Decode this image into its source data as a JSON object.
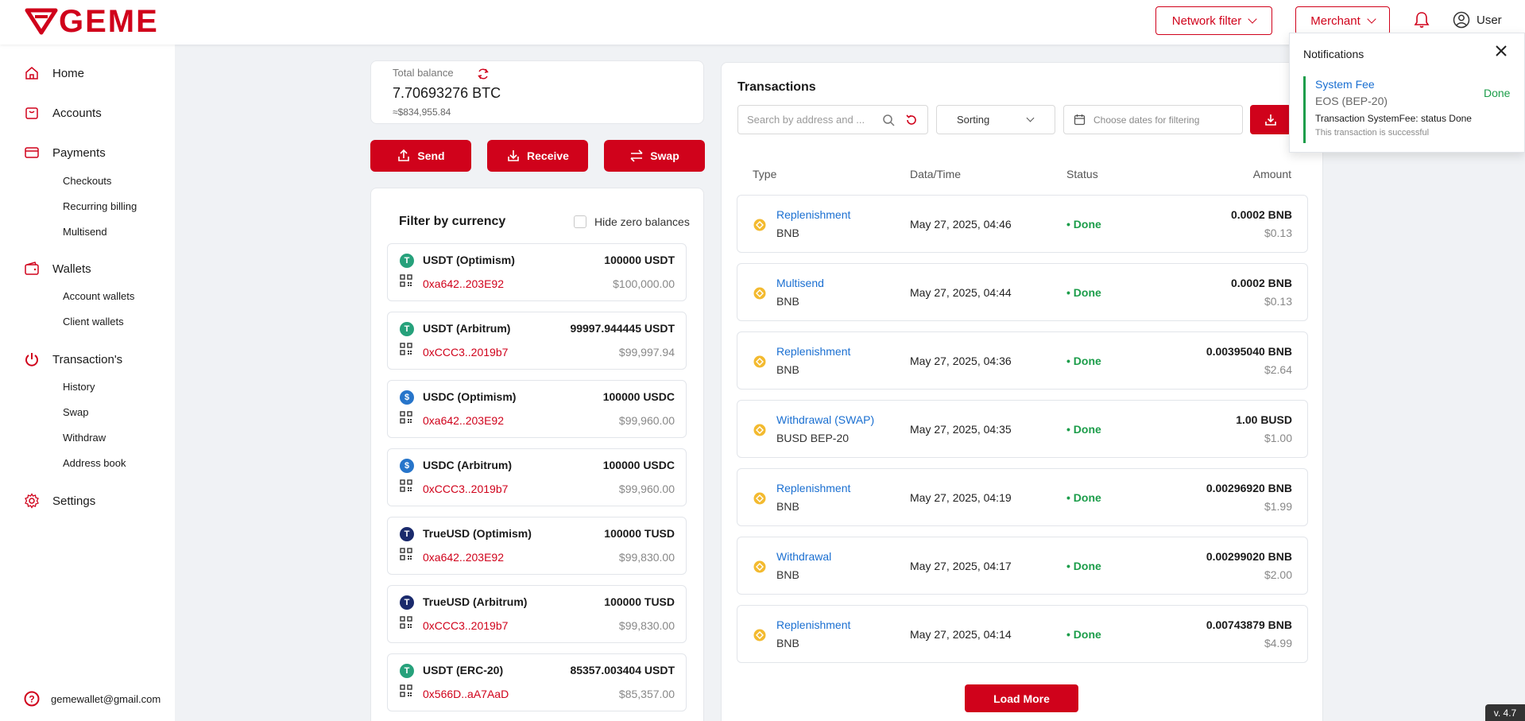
{
  "header": {
    "logo_text": "GEME",
    "network_filter_label": "Network filter",
    "merchant_label": "Merchant",
    "user_label": "User"
  },
  "sidebar": {
    "items": [
      {
        "label": "Home",
        "icon": "home-icon"
      },
      {
        "label": "Accounts",
        "icon": "bag-icon"
      },
      {
        "label": "Payments",
        "icon": "card-icon",
        "children": [
          "Checkouts",
          "Recurring billing",
          "Multisend"
        ]
      },
      {
        "label": "Wallets",
        "icon": "wallet-icon",
        "children": [
          "Account wallets",
          "Client wallets"
        ]
      },
      {
        "label": "Transaction's",
        "icon": "power-icon",
        "children": [
          "History",
          "Swap",
          "Withdraw",
          "Address book"
        ]
      },
      {
        "label": "Settings",
        "icon": "gear-icon"
      }
    ],
    "footer_email": "gemewallet@gmail.com"
  },
  "balance": {
    "label": "Total balance",
    "value": "7.70693276 BTC",
    "fiat": "≈$834,955.84"
  },
  "actions": {
    "send": "Send",
    "receive": "Receive",
    "swap": "Swap"
  },
  "currencies": {
    "title": "Filter by currency",
    "hide_zero_label": "Hide zero balances",
    "items": [
      {
        "name": "USDT (Optimism)",
        "amount": "100000 USDT",
        "address": "0xa642..203E92",
        "fiat": "$100,000.00",
        "icon_letter": "T",
        "color": "#26a17b"
      },
      {
        "name": "USDT (Arbitrum)",
        "amount": "99997.944445 USDT",
        "address": "0xCCC3..2019b7",
        "fiat": "$99,997.94",
        "icon_letter": "T",
        "color": "#26a17b"
      },
      {
        "name": "USDC (Optimism)",
        "amount": "100000 USDC",
        "address": "0xa642..203E92",
        "fiat": "$99,960.00",
        "icon_letter": "$",
        "color": "#2775ca"
      },
      {
        "name": "USDC (Arbitrum)",
        "amount": "100000 USDC",
        "address": "0xCCC3..2019b7",
        "fiat": "$99,960.00",
        "icon_letter": "$",
        "color": "#2775ca"
      },
      {
        "name": "TrueUSD (Optimism)",
        "amount": "100000 TUSD",
        "address": "0xa642..203E92",
        "fiat": "$99,830.00",
        "icon_letter": "T",
        "color": "#1a2a6c"
      },
      {
        "name": "TrueUSD (Arbitrum)",
        "amount": "100000 TUSD",
        "address": "0xCCC3..2019b7",
        "fiat": "$99,830.00",
        "icon_letter": "T",
        "color": "#1a2a6c"
      },
      {
        "name": "USDT (ERC-20)",
        "amount": "85357.003404 USDT",
        "address": "0x566D..aA7AaD",
        "fiat": "$85,357.00",
        "icon_letter": "T",
        "color": "#26a17b"
      }
    ]
  },
  "transactions": {
    "title": "Transactions",
    "search_placeholder": "Search by address and ...",
    "sorting_label": "Sorting",
    "date_placeholder": "Choose dates for filtering",
    "columns": {
      "type": "Type",
      "datetime": "Data/Time",
      "status": "Status",
      "amount": "Amount"
    },
    "rows": [
      {
        "type": "Replenishment",
        "asset": "BNB",
        "time": "May 27, 2025, 04:46",
        "status": "• Done",
        "amount": "0.0002 BNB",
        "fiat": "$0.13"
      },
      {
        "type": "Multisend",
        "asset": "BNB",
        "time": "May 27, 2025, 04:44",
        "status": "• Done",
        "amount": "0.0002 BNB",
        "fiat": "$0.13"
      },
      {
        "type": "Replenishment",
        "asset": "BNB",
        "time": "May 27, 2025, 04:36",
        "status": "• Done",
        "amount": "0.00395040 BNB",
        "fiat": "$2.64"
      },
      {
        "type": "Withdrawal (SWAP)",
        "asset": "BUSD BEP-20",
        "time": "May 27, 2025, 04:35",
        "status": "• Done",
        "amount": "1.00 BUSD",
        "fiat": "$1.00"
      },
      {
        "type": "Replenishment",
        "asset": "BNB",
        "time": "May 27, 2025, 04:19",
        "status": "• Done",
        "amount": "0.00296920 BNB",
        "fiat": "$1.99"
      },
      {
        "type": "Withdrawal",
        "asset": "BNB",
        "time": "May 27, 2025, 04:17",
        "status": "• Done",
        "amount": "0.00299020 BNB",
        "fiat": "$2.00"
      },
      {
        "type": "Replenishment",
        "asset": "BNB",
        "time": "May 27, 2025, 04:14",
        "status": "• Done",
        "amount": "0.00743879 BNB",
        "fiat": "$4.99"
      }
    ],
    "load_more_label": "Load More"
  },
  "notifications": {
    "title": "Notifications",
    "item": {
      "name": "System Fee",
      "network": "EOS (BEP-20)",
      "message": "Transaction SystemFee: status Done",
      "sub": "This transaction is successful",
      "status": "Done"
    }
  },
  "version": "v. 4.7",
  "colors": {
    "brand": "#d0021b",
    "success": "#1c9d4a",
    "link": "#1a6fd1"
  }
}
